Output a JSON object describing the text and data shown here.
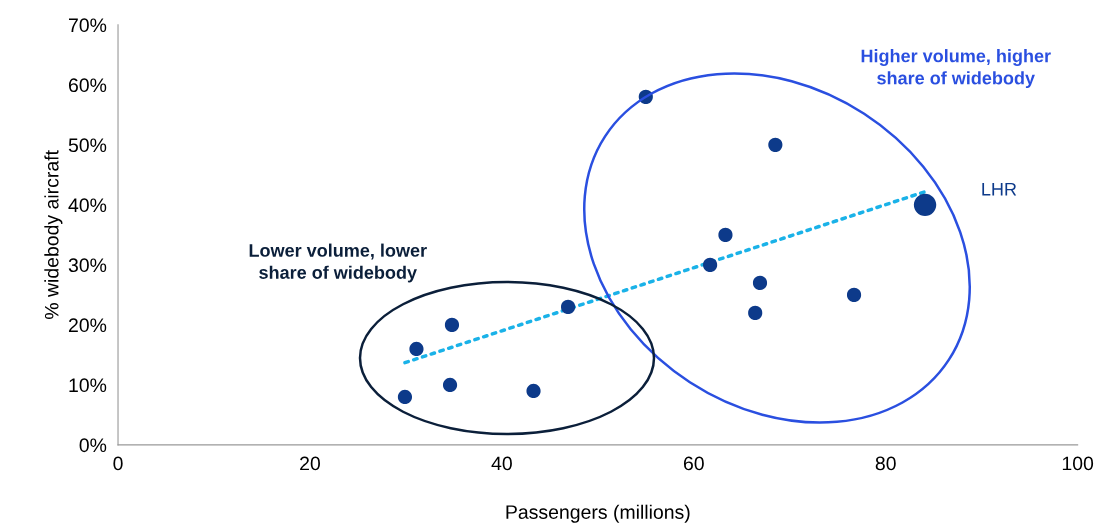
{
  "chart_data": {
    "type": "bubble",
    "xlabel": "Passengers (millions)",
    "ylabel": "% widebody aircraft",
    "xlim": [
      0,
      100
    ],
    "xticks": [
      0,
      20,
      40,
      60,
      80,
      100
    ],
    "ylim": [
      0,
      70
    ],
    "yticks": [
      {
        "value": 0,
        "label": "0%"
      },
      {
        "value": 10,
        "label": "10%"
      },
      {
        "value": 20,
        "label": "20%"
      },
      {
        "value": 30,
        "label": "30%"
      },
      {
        "value": 40,
        "label": "40%"
      },
      {
        "value": 50,
        "label": "50%"
      },
      {
        "value": 60,
        "label": "60%"
      },
      {
        "value": 70,
        "label": "70%"
      }
    ],
    "grid": false,
    "legend": false,
    "marker": "circle",
    "series": [
      {
        "color": "#0d3a8a",
        "x": [
          29.9,
          31.1,
          34.8,
          34.6,
          43.3,
          46.9,
          55.0,
          61.7,
          63.3,
          68.5,
          66.9,
          66.4,
          76.7,
          84.1
        ],
        "values": [
          8,
          16,
          20,
          10,
          9,
          23,
          58,
          30,
          35,
          50,
          27,
          22,
          25,
          40
        ],
        "sizes": [
          0.4,
          0.4,
          0.4,
          0.4,
          0.4,
          0.4,
          0.4,
          0.4,
          0.4,
          0.4,
          0.4,
          0.4,
          0.4,
          1
        ]
      },
      {
        "type": "line",
        "color": "#1ab2e8",
        "line_style": "dotted",
        "marker": "none",
        "x": [
          29.9,
          84.1
        ],
        "values": [
          13.7,
          42.2
        ]
      }
    ],
    "annotations": [
      "LHR",
      "Higher volume, higher\nshare of widebody",
      "Lower volume, lower\nshare of widebody"
    ]
  }
}
